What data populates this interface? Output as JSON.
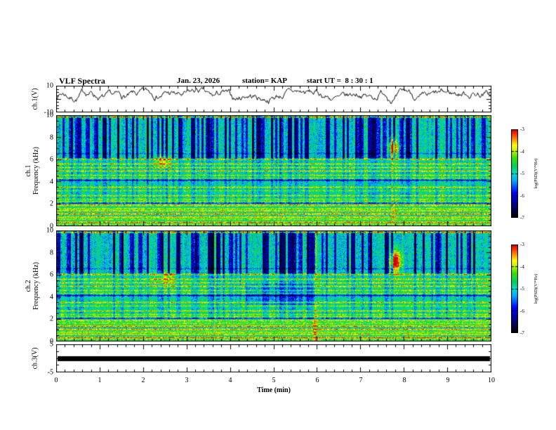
{
  "header": {
    "title": "VLF Spectra",
    "date": "Jan. 23, 2026",
    "station": "station= KAP",
    "start_ut": "start UT =  8 : 30 : 1"
  },
  "axes": {
    "time_label": "Time (min)",
    "time_ticks": [
      0,
      1,
      2,
      3,
      4,
      5,
      6,
      7,
      8,
      9,
      10
    ],
    "time_range_min": [
      0,
      10
    ]
  },
  "panels": {
    "ch1_wave": {
      "ylabel": "ch.1(V)",
      "yticks": [
        10,
        -10
      ],
      "yrange": [
        -10,
        10
      ]
    },
    "ch1_spec": {
      "ylabel_line1": "ch.1",
      "ylabel_line2": "Frequency (kHz)",
      "yticks": [
        0,
        2,
        4,
        6,
        8,
        10
      ],
      "yrange": [
        0,
        10
      ]
    },
    "ch2_spec": {
      "ylabel_line1": "ch.2",
      "ylabel_line2": "Frequency (kHz)",
      "yticks": [
        0,
        2,
        4,
        6,
        8,
        10
      ],
      "yrange": [
        0,
        10
      ]
    },
    "ch3": {
      "ylabel": "ch.3(V)",
      "yticks": [
        5,
        -5
      ],
      "yrange": [
        -5,
        5
      ]
    }
  },
  "colorbar": {
    "label": "log(PSD)(V²*Hz)",
    "ticks": [
      -3,
      -4,
      -5,
      -6,
      -7
    ],
    "range": [
      -7,
      -3
    ],
    "colors": [
      "#000000",
      "#000080",
      "#0000ff",
      "#00aaff",
      "#00e0c8",
      "#00d060",
      "#40e000",
      "#c8f000",
      "#ffff00",
      "#ff9000",
      "#ff3000",
      "#d00000"
    ]
  },
  "chart_data": [
    {
      "type": "line",
      "name": "ch1_waveform",
      "xlim": [
        0,
        10
      ],
      "ylim": [
        -10,
        10
      ],
      "ylabel": "ch.1(V)",
      "approx_mean_V": 2.5,
      "approx_peak_V": 8,
      "description": "Dense noisy broadband voltage trace fluctuating mostly between -6 and +8 V around roughly +2.5 V for the full 10 minutes"
    },
    {
      "type": "heatmap",
      "name": "ch1_spectrogram",
      "xlim": [
        0,
        10
      ],
      "ylim": [
        0,
        10
      ],
      "zlabel": "log(PSD)(V²*Hz)",
      "zlim": [
        -7,
        -3
      ],
      "stripe_density": 0.38,
      "bands": [
        {
          "f": 9.85,
          "a": 0.45
        },
        {
          "f": 6.05,
          "a": 0.38
        },
        {
          "f": 5.6,
          "a": 0.3
        },
        {
          "f": 5.3,
          "a": 0.28
        },
        {
          "f": 4.95,
          "a": 0.32
        },
        {
          "f": 4.6,
          "a": 0.25
        },
        {
          "f": 4.3,
          "a": 0.2
        },
        {
          "f": 3.5,
          "a": 0.3
        },
        {
          "f": 3.2,
          "a": 0.2
        },
        {
          "f": 2.75,
          "a": 0.28
        },
        {
          "f": 2.45,
          "a": 0.22
        },
        {
          "f": 2.2,
          "a": 0.25
        },
        {
          "f": 1.9,
          "a": 0.3
        },
        {
          "f": 1.6,
          "a": 0.25
        },
        {
          "f": 1.35,
          "a": 0.28
        },
        {
          "f": 1.1,
          "a": 0.25
        },
        {
          "f": 0.85,
          "a": 0.3
        },
        {
          "f": 0.6,
          "a": 0.25
        },
        {
          "f": 0.35,
          "a": 0.3
        },
        {
          "f": 0.15,
          "a": 0.25
        }
      ],
      "dark_bands": [
        {
          "f": 4.15,
          "a": 0.3
        },
        {
          "f": 2.05,
          "a": 0.2
        },
        {
          "f": 6.55,
          "a": 0.12
        }
      ],
      "features": [
        {
          "kind": "blob",
          "t": 2.45,
          "f": 5.9,
          "dt": 0.12,
          "df": 0.45,
          "amp": 0.3,
          "note": "yellow-green enhancement ~2.4 min near 6 kHz"
        },
        {
          "kind": "blob",
          "t": 7.75,
          "f": 7.0,
          "dt": 0.07,
          "df": 0.55,
          "amp": 0.62,
          "note": "intense red burst ~7.75 min near 7 kHz"
        },
        {
          "kind": "vline",
          "t": 7.75,
          "dt": 0.03,
          "amp": 0.12,
          "note": "faint broadband streak under the burst"
        }
      ],
      "description": "0-10 kHz spectrogram: blue/cyan vertical striping above 6 kHz, green mid band with yellow-orange horizontal interference lines, dense striped layer below 2 kHz, orange line at top edge"
    },
    {
      "type": "heatmap",
      "name": "ch2_spectrogram",
      "xlim": [
        0,
        10
      ],
      "ylim": [
        0,
        10
      ],
      "zlabel": "log(PSD)(V²*Hz)",
      "zlim": [
        -7,
        -3
      ],
      "stripe_density": 0.36,
      "bands": [
        {
          "f": 9.85,
          "a": 0.45
        },
        {
          "f": 6.05,
          "a": 0.38
        },
        {
          "f": 5.6,
          "a": 0.3
        },
        {
          "f": 5.3,
          "a": 0.28
        },
        {
          "f": 4.95,
          "a": 0.32
        },
        {
          "f": 4.6,
          "a": 0.25
        },
        {
          "f": 4.3,
          "a": 0.2
        },
        {
          "f": 3.5,
          "a": 0.3
        },
        {
          "f": 3.2,
          "a": 0.2
        },
        {
          "f": 2.75,
          "a": 0.28
        },
        {
          "f": 2.45,
          "a": 0.22
        },
        {
          "f": 2.2,
          "a": 0.25
        },
        {
          "f": 1.9,
          "a": 0.3
        },
        {
          "f": 1.6,
          "a": 0.25
        },
        {
          "f": 1.35,
          "a": 0.28
        },
        {
          "f": 1.1,
          "a": 0.25
        },
        {
          "f": 0.85,
          "a": 0.3
        },
        {
          "f": 0.6,
          "a": 0.25
        },
        {
          "f": 0.35,
          "a": 0.3
        },
        {
          "f": 0.15,
          "a": 0.25
        }
      ],
      "dark_bands": [
        {
          "f": 4.15,
          "a": 0.3
        },
        {
          "f": 2.05,
          "a": 0.2
        },
        {
          "f": 6.55,
          "a": 0.12
        }
      ],
      "features": [
        {
          "kind": "blob",
          "t": 2.5,
          "f": 5.7,
          "dt": 0.15,
          "df": 0.5,
          "amp": 0.25,
          "note": "yellow-green enhancement ~2.5 min"
        },
        {
          "kind": "block",
          "t0": 4.35,
          "t1": 6.0,
          "f0": 3.3,
          "f1": 5.4,
          "amp": -0.12,
          "note": "bluer quiet block 4.3-6 min below 5.4 kHz"
        },
        {
          "kind": "vline",
          "t": 5.95,
          "dt": 0.03,
          "amp": 0.22,
          "note": "narrow yellow broadband streak ~5.95 min"
        },
        {
          "kind": "blob",
          "t": 7.8,
          "f": 7.2,
          "dt": 0.09,
          "df": 0.7,
          "amp": 0.65,
          "note": "intense red burst ~7.8 min near 7 kHz"
        }
      ],
      "description": "Similar to ch.1 spectrogram with same horizontal interference lines; extra quiet blue block mid-record and a strong red burst near 7.8 min"
    },
    {
      "type": "line",
      "name": "ch3_voltage",
      "xlim": [
        0,
        10
      ],
      "ylim": [
        -5,
        5
      ],
      "ylabel": "ch.3(V)",
      "value_V": 0,
      "description": "Saturated flat thick black trace at ~0 V spanning the entire record"
    }
  ]
}
